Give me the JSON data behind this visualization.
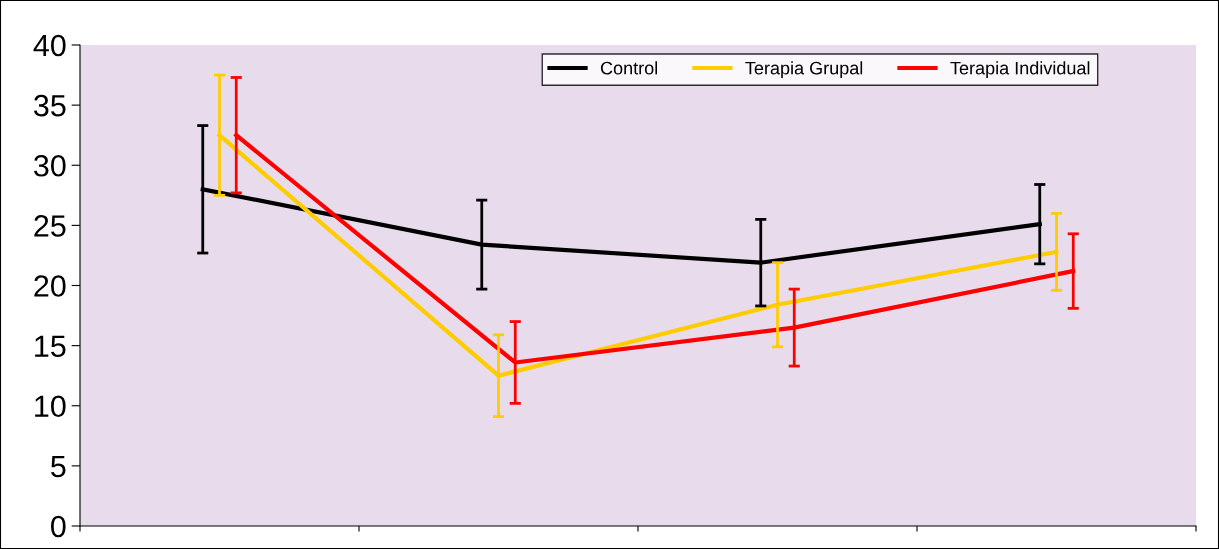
{
  "chart_data": {
    "type": "line",
    "categories": [
      null,
      null,
      null,
      null
    ],
    "ylim": [
      0,
      40
    ],
    "yticks": [
      0,
      5,
      10,
      15,
      20,
      25,
      30,
      35,
      40
    ],
    "tick_labels": "y",
    "grid": false,
    "legend": "top right",
    "marker": "none",
    "line_style": "solid",
    "series": [
      {
        "name": "Control",
        "color": "#000000",
        "values": [
          28.0,
          23.4,
          21.9,
          25.1
        ],
        "errors": [
          5.3,
          3.7,
          3.6,
          3.3
        ]
      },
      {
        "name": "Terapia Grupal",
        "color": "#ffcc00",
        "values": [
          32.5,
          12.5,
          18.4,
          22.8
        ],
        "errors": [
          5.0,
          3.4,
          3.5,
          3.2
        ]
      },
      {
        "name": "Terapia Individual",
        "color": "#ff0000",
        "values": [
          32.5,
          13.6,
          16.5,
          21.2
        ],
        "errors": [
          4.8,
          3.4,
          3.2,
          3.1
        ]
      }
    ]
  }
}
